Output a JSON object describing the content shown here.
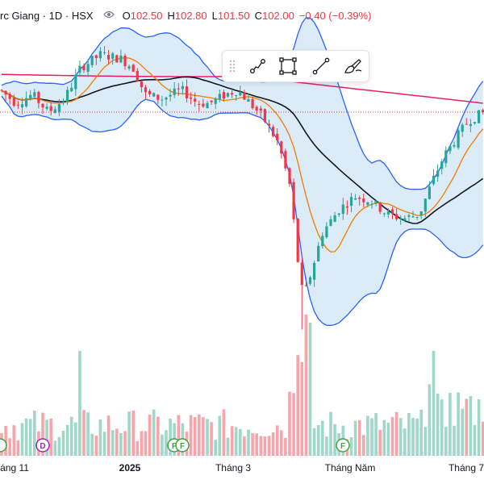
{
  "legend": {
    "symbol": "rc Giang · 1D · HSX",
    "open_label": "O",
    "open": "102.50",
    "high_label": "H",
    "high": "102.80",
    "low_label": "L",
    "low": "101.50",
    "close_label": "C",
    "close": "102.00",
    "change": "−0.40 (−0.39%)"
  },
  "toolbar": {
    "icons": [
      "drag-handle-icon",
      "trend-line-icon",
      "rectangle-icon",
      "line-icon",
      "brush-icon"
    ]
  },
  "colors": {
    "up": "#26a69a",
    "down": "#f23645",
    "vol_up": "#9fd7c8",
    "vol_down": "#f7a5ab",
    "band_fill": "#d5e8f7",
    "band_line": "#2962ff",
    "ma_short": "#f57c00",
    "ma_mid": "#131722",
    "ma_long": "#e91e63",
    "price_line": "#f23645",
    "marker_dividend": "#9c27b0",
    "marker_financial": "#43a047"
  },
  "chart_data": {
    "type": "candlestick",
    "x_axis_labels": [
      {
        "text": "áng 11",
        "bold": false
      },
      {
        "text": "2025",
        "bold": true
      },
      {
        "text": "Tháng 3",
        "bold": false
      },
      {
        "text": "Tháng Năm",
        "bold": false
      },
      {
        "text": "Tháng 7",
        "bold": false
      }
    ],
    "event_markers": [
      {
        "label": "D",
        "kind": "dividend"
      },
      {
        "label": "F",
        "kind": "financial"
      },
      {
        "label": "F",
        "kind": "financial"
      },
      {
        "label": "F",
        "kind": "financial"
      }
    ],
    "last_price": 102.0,
    "indicators": [
      "Bollinger Bands",
      "MA short",
      "MA mid",
      "MA long"
    ]
  }
}
